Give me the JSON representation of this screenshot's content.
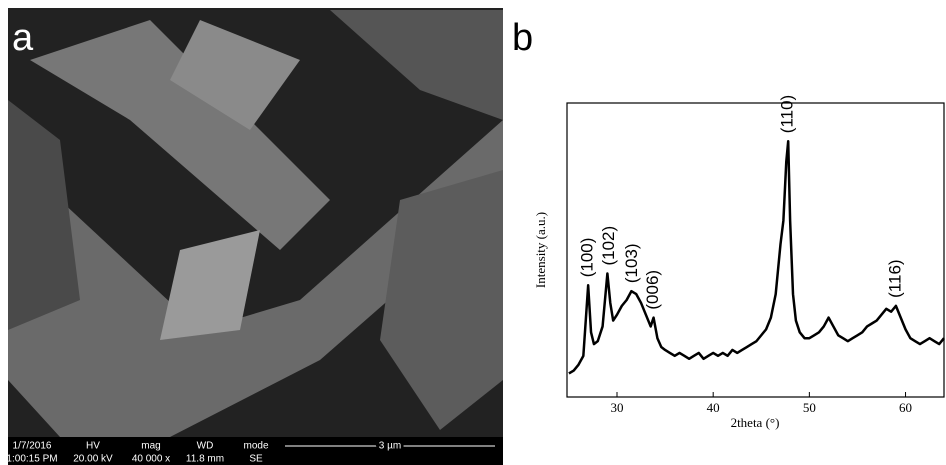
{
  "panel_a": {
    "label": "a",
    "info": {
      "date": "1/7/2016",
      "time": "1:00:15 PM",
      "hv_label": "HV",
      "hv": "20.00 kV",
      "mag_label": "mag",
      "mag": "40 000 x",
      "wd_label": "WD",
      "wd": "11.8 mm",
      "mode_label": "mode",
      "mode": "SE",
      "scale": "3 µm"
    }
  },
  "chart_data": {
    "type": "line",
    "panel_label": "b",
    "x_label": "2theta (°)",
    "y_label": "Intensity (a.u.)",
    "xlim": [
      24.8,
      64
    ],
    "ylim": [
      0,
      100
    ],
    "xticks": [
      30,
      40,
      50,
      60
    ],
    "x": [
      25,
      25.5,
      26,
      26.5,
      27,
      27.3,
      27.6,
      28,
      28.5,
      29,
      29.3,
      29.6,
      30,
      30.5,
      31,
      31.5,
      32,
      32.5,
      33,
      33.5,
      33.8,
      34.2,
      34.6,
      35,
      35.5,
      36,
      36.5,
      37,
      37.5,
      38,
      38.5,
      39,
      39.5,
      40,
      40.5,
      41,
      41.5,
      42,
      42.5,
      43,
      43.5,
      44,
      44.5,
      45,
      45.5,
      46,
      46.5,
      47,
      47.3,
      47.6,
      47.8,
      48,
      48.3,
      48.6,
      49,
      49.5,
      50,
      50.5,
      51,
      51.5,
      52,
      52.5,
      53,
      53.5,
      54,
      54.5,
      55,
      55.5,
      56,
      56.5,
      57,
      57.5,
      58,
      58.5,
      59,
      59.5,
      60,
      60.5,
      61,
      61.5,
      62,
      62.5,
      63,
      63.5,
      64
    ],
    "series": [
      {
        "color": "#000000",
        "values": [
          8,
          9,
          11,
          14,
          38,
          22,
          18,
          19,
          24,
          42,
          32,
          26,
          28,
          31,
          33,
          36,
          35,
          32,
          28,
          24,
          27,
          20,
          17,
          16,
          15,
          14,
          15,
          14,
          13,
          14,
          15,
          13,
          14,
          15,
          14,
          15,
          14,
          16,
          15,
          16,
          17,
          18,
          19,
          21,
          23,
          27,
          35,
          52,
          60,
          80,
          87,
          60,
          35,
          26,
          22,
          20,
          20,
          21,
          22,
          24,
          27,
          24,
          21,
          20,
          19,
          20,
          21,
          22,
          24,
          25,
          26,
          28,
          30,
          29,
          31,
          27,
          23,
          20,
          19,
          18,
          19,
          20,
          19,
          18,
          20
        ]
      }
    ],
    "annotations": [
      {
        "label": "(100)",
        "x": 27
      },
      {
        "label": "(102)",
        "x": 29.2
      },
      {
        "label": "(103)",
        "x": 31.6
      },
      {
        "label": "(006)",
        "x": 33.8
      },
      {
        "label": "(110)",
        "x": 47.8
      },
      {
        "label": "(116)",
        "x": 59
      }
    ]
  }
}
